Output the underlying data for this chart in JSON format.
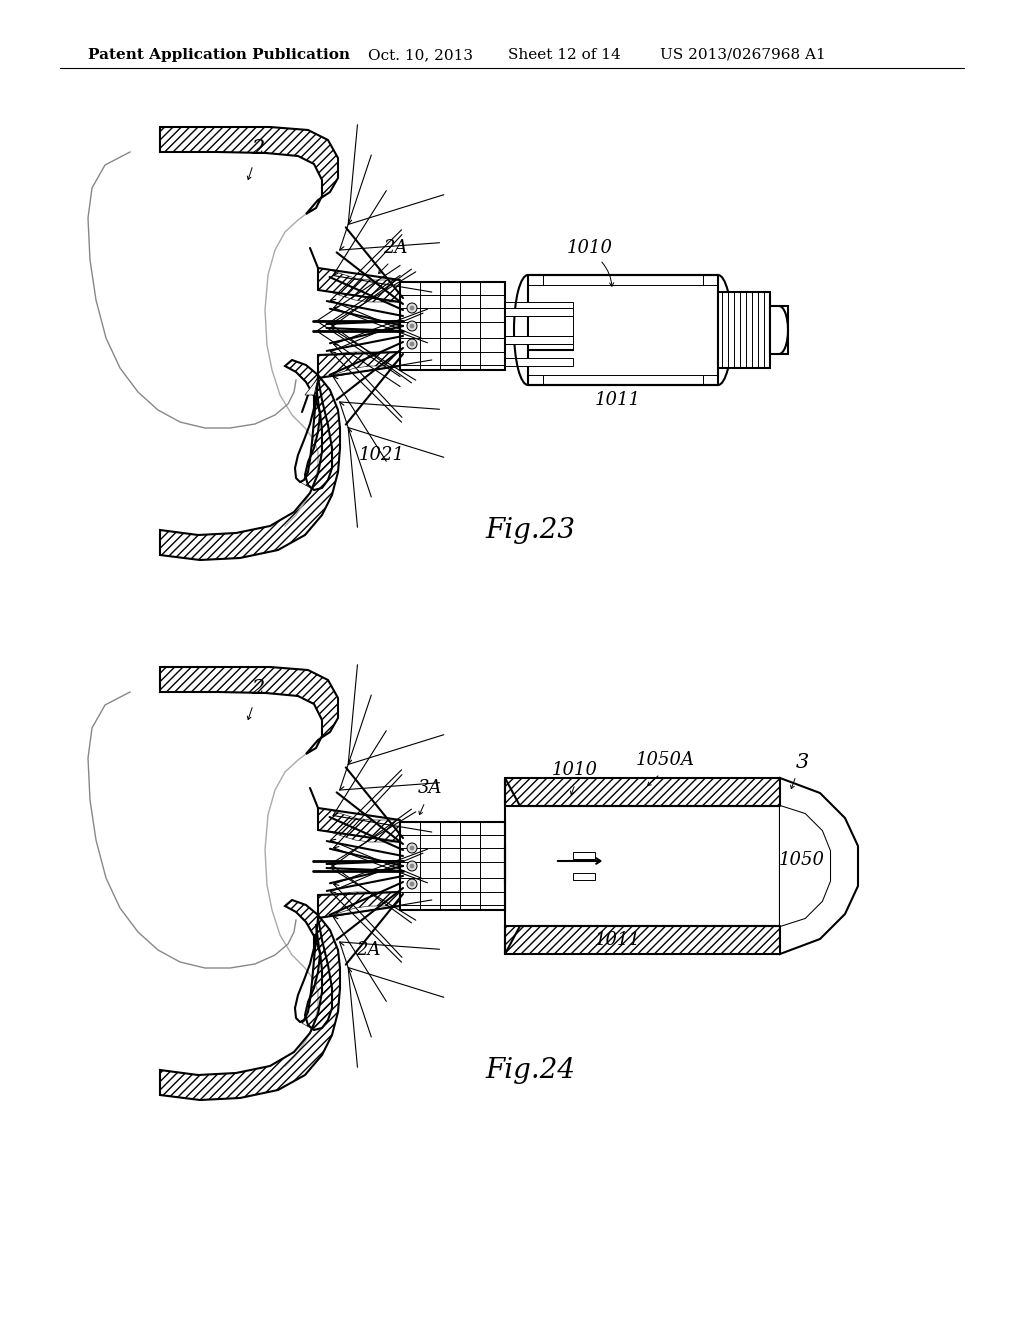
{
  "background_color": "#ffffff",
  "header_text": "Patent Application Publication",
  "header_date": "Oct. 10, 2013",
  "header_sheet": "Sheet 12 of 14",
  "header_patent": "US 2013/0267968 A1",
  "fig23_label": "Fig.23",
  "fig24_label": "Fig.24",
  "lc": "#000000",
  "lw": 1.5,
  "lw_t": 0.7,
  "lw_k": 2.2,
  "label_fs": 13,
  "header_fs": 11,
  "figlabel_fs": 20
}
